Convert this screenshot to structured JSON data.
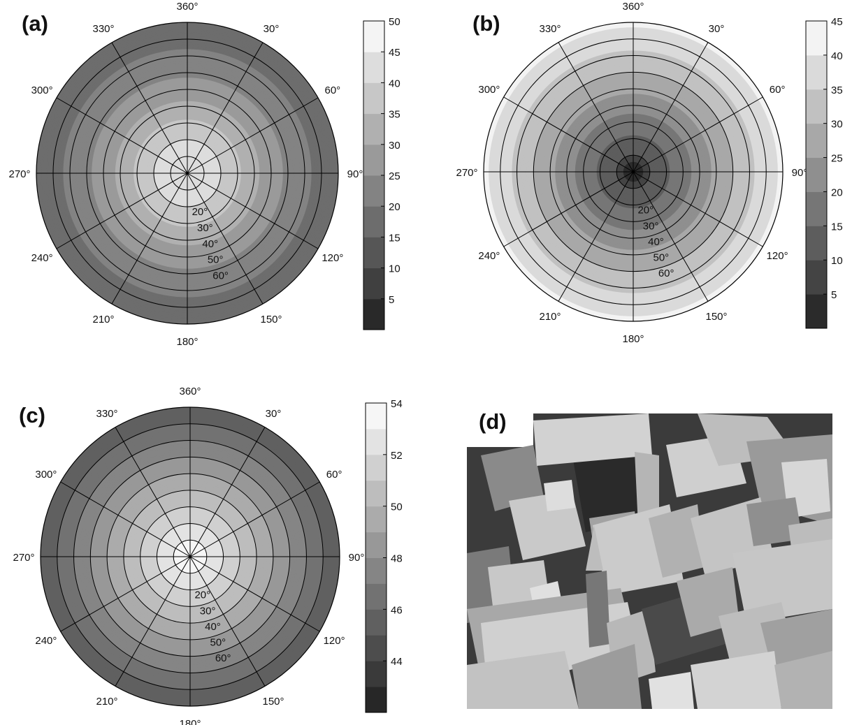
{
  "panels": {
    "a": "(a)",
    "b": "(b)",
    "c": "(c)",
    "d": "(d)"
  },
  "chart_data": [
    {
      "panel": "(a)",
      "type": "heatmap",
      "projection": "polar",
      "azimuth_labels": [
        "360°",
        "30°",
        "60°",
        "90°",
        "120°",
        "150°",
        "180°",
        "210°",
        "240°",
        "270°",
        "300°",
        "330°"
      ],
      "zenith_labels": [
        "20°",
        "30°",
        "40°",
        "50°",
        "60°"
      ],
      "colorbar": {
        "ticks": [
          5,
          10,
          15,
          20,
          25,
          30,
          35,
          40,
          45,
          50
        ],
        "range": [
          0,
          50
        ],
        "step": 5
      },
      "profile": {
        "zenith_deg": [
          0,
          10,
          20,
          30,
          40,
          50,
          60,
          70,
          80,
          90
        ],
        "value": [
          45,
          43,
          40,
          36,
          31,
          27,
          24,
          21,
          18.5,
          16
        ]
      }
    },
    {
      "panel": "(b)",
      "type": "heatmap",
      "projection": "polar",
      "azimuth_labels": [
        "360°",
        "30°",
        "60°",
        "90°",
        "120°",
        "150°",
        "180°",
        "210°",
        "240°",
        "270°",
        "300°",
        "330°"
      ],
      "zenith_labels": [
        "20°",
        "30°",
        "40°",
        "50°",
        "60°"
      ],
      "colorbar": {
        "ticks": [
          5,
          10,
          15,
          20,
          25,
          30,
          35,
          40,
          45
        ],
        "range": [
          0,
          45
        ],
        "step": 5
      },
      "profile": {
        "zenith_deg": [
          0,
          5,
          10,
          20,
          30,
          40,
          50,
          60,
          70,
          80,
          90
        ],
        "value": [
          2,
          3,
          10,
          14,
          18,
          22,
          26,
          30,
          34,
          37,
          41
        ]
      }
    },
    {
      "panel": "(c)",
      "type": "heatmap",
      "projection": "polar",
      "azimuth_labels": [
        "360°",
        "30°",
        "60°",
        "90°",
        "120°",
        "150°",
        "180°",
        "210°",
        "240°",
        "270°",
        "300°",
        "330°"
      ],
      "zenith_labels": [
        "20°",
        "30°",
        "40°",
        "50°",
        "60°"
      ],
      "colorbar": {
        "ticks": [
          44,
          46,
          48,
          50,
          52,
          54
        ],
        "range": [
          42,
          54
        ],
        "step": 1
      },
      "profile": {
        "zenith_deg": [
          0,
          10,
          20,
          30,
          40,
          50,
          60,
          70,
          80,
          90
        ],
        "value": [
          53.5,
          53,
          52,
          51,
          50,
          49,
          48,
          47,
          46,
          45.2
        ]
      }
    }
  ]
}
